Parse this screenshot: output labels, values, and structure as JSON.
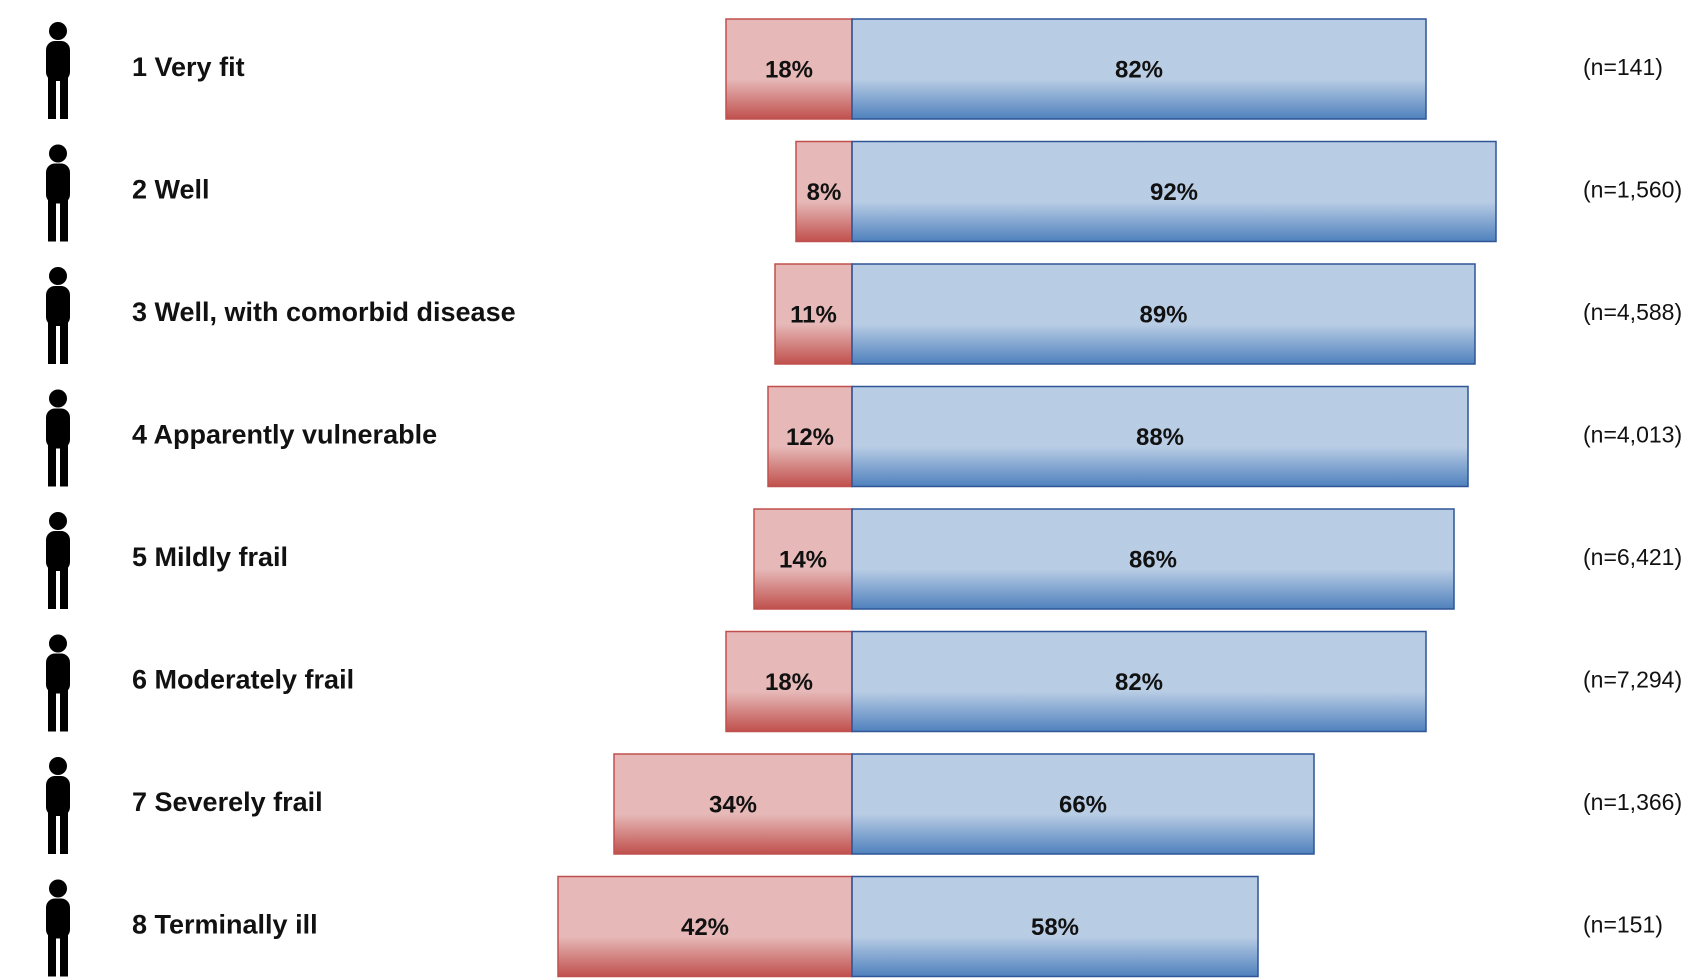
{
  "chart_data": {
    "type": "diverging_bar",
    "categories": [
      "1 Very fit",
      "2 Well",
      "3 Well, with comorbid disease",
      "4 Apparently vulnerable",
      "5 Mildly frail",
      "6 Moderately frail",
      "7 Severely frail",
      "8 Terminally ill"
    ],
    "series": [
      {
        "color": "#c0504d",
        "values": [
          18,
          8,
          11,
          12,
          14,
          18,
          34,
          42
        ],
        "value_labels": [
          "18%",
          "8%",
          "11%",
          "12%",
          "14%",
          "18%",
          "34%",
          "42%"
        ]
      },
      {
        "color": "#4f81bd",
        "values": [
          82,
          92,
          89,
          88,
          86,
          82,
          66,
          58
        ],
        "value_labels": [
          "82%",
          "92%",
          "89%",
          "88%",
          "86%",
          "82%",
          "66%",
          "58%"
        ]
      }
    ],
    "n_labels": [
      "(n=141)",
      "(n=1,560)",
      "(n=4,588)",
      "(n=4,013)",
      "(n=6,421)",
      "(n=7,294)",
      "(n=1,366)",
      "(n=151)"
    ]
  }
}
